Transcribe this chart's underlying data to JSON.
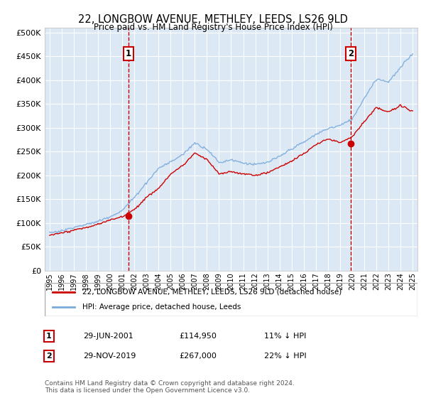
{
  "title": "22, LONGBOW AVENUE, METHLEY, LEEDS, LS26 9LD",
  "subtitle": "Price paid vs. HM Land Registry's House Price Index (HPI)",
  "ylim": [
    0,
    510000
  ],
  "yticks": [
    0,
    50000,
    100000,
    150000,
    200000,
    250000,
    300000,
    350000,
    400000,
    450000,
    500000
  ],
  "background_color": "#ffffff",
  "plot_bg_color": "#dce9f5",
  "grid_color": "#ffffff",
  "legend_label_red": "22, LONGBOW AVENUE, METHLEY, LEEDS, LS26 9LD (detached house)",
  "legend_label_blue": "HPI: Average price, detached house, Leeds",
  "annotation1_date": "29-JUN-2001",
  "annotation1_price": "£114,950",
  "annotation1_hpi": "11% ↓ HPI",
  "annotation2_date": "29-NOV-2019",
  "annotation2_price": "£267,000",
  "annotation2_hpi": "22% ↓ HPI",
  "footer": "Contains HM Land Registry data © Crown copyright and database right 2024.\nThis data is licensed under the Open Government Licence v3.0.",
  "red_color": "#cc0000",
  "blue_color": "#7aaadd",
  "sale1_year": 2001.5,
  "sale1_price": 114950,
  "sale2_year": 2019.9,
  "sale2_price": 267000,
  "hpi_years": [
    1995,
    1996,
    1997,
    1998,
    1999,
    2000,
    2001,
    2002,
    2003,
    2004,
    2005,
    2006,
    2007,
    2008,
    2009,
    2010,
    2011,
    2012,
    2013,
    2014,
    2015,
    2016,
    2017,
    2018,
    2019,
    2020,
    2021,
    2022,
    2023,
    2024,
    2025
  ],
  "hpi_vals": [
    80000,
    84000,
    92000,
    98000,
    105000,
    115000,
    128000,
    155000,
    185000,
    215000,
    228000,
    243000,
    270000,
    258000,
    228000,
    235000,
    228000,
    225000,
    230000,
    242000,
    258000,
    272000,
    288000,
    300000,
    308000,
    320000,
    365000,
    405000,
    400000,
    430000,
    460000
  ],
  "red_vals": [
    75000,
    79000,
    86000,
    91000,
    98000,
    107000,
    114950,
    130000,
    155000,
    175000,
    205000,
    222000,
    248000,
    235000,
    205000,
    210000,
    205000,
    202000,
    207000,
    218000,
    230000,
    245000,
    263000,
    275000,
    267000,
    280000,
    310000,
    340000,
    332000,
    345000,
    335000
  ]
}
